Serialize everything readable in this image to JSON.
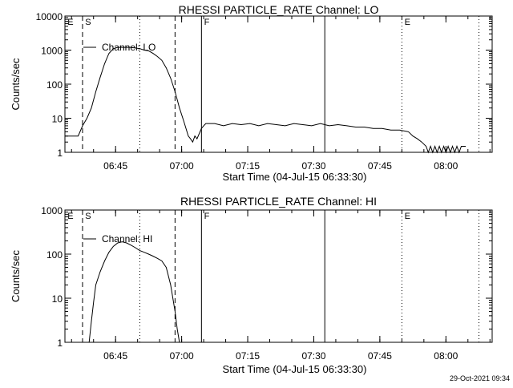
{
  "chart_data": [
    {
      "type": "line",
      "title": "RHESSI PARTICLE_RATE Channel: LO",
      "xlabel": "Start Time (04-Jul-15 06:33:30)",
      "ylabel": "Counts/sec",
      "yscale": "log",
      "ylim": [
        1,
        10000
      ],
      "ytick_labels": [
        "1",
        "10",
        "100",
        "1000",
        "10000"
      ],
      "xlim_minutes": [
        0,
        97
      ],
      "xtick_labels": [
        "06:45",
        "07:00",
        "07:15",
        "07:30",
        "07:45",
        "08:00"
      ],
      "legend": "Channel: LO",
      "series": [
        {
          "name": "Channel: LO",
          "points": [
            [
              0,
              3
            ],
            [
              2,
              3
            ],
            [
              3,
              3
            ],
            [
              4,
              6
            ],
            [
              5,
              10
            ],
            [
              6,
              20
            ],
            [
              7,
              60
            ],
            [
              8,
              160
            ],
            [
              9,
              400
            ],
            [
              10,
              800
            ],
            [
              11,
              1100
            ],
            [
              12,
              1200
            ],
            [
              13,
              1200
            ],
            [
              14,
              1200
            ],
            [
              15,
              1200
            ],
            [
              16,
              1150
            ],
            [
              17,
              1100
            ],
            [
              18,
              1000
            ],
            [
              19,
              950
            ],
            [
              20,
              800
            ],
            [
              21,
              650
            ],
            [
              22,
              500
            ],
            [
              23,
              300
            ],
            [
              24,
              150
            ],
            [
              25,
              60
            ],
            [
              26,
              20
            ],
            [
              27,
              8
            ],
            [
              28,
              3
            ],
            [
              28.5,
              2.5
            ],
            [
              29,
              2
            ],
            [
              29.5,
              3
            ],
            [
              30,
              2.5
            ],
            [
              31,
              5
            ],
            [
              31.5,
              6
            ],
            [
              32,
              7
            ],
            [
              34,
              7
            ],
            [
              36,
              6
            ],
            [
              38,
              7
            ],
            [
              40,
              6.5
            ],
            [
              42,
              7
            ],
            [
              44,
              6
            ],
            [
              46,
              7
            ],
            [
              48,
              6.5
            ],
            [
              50,
              6
            ],
            [
              52,
              7
            ],
            [
              54,
              6.5
            ],
            [
              56,
              6
            ],
            [
              58,
              7
            ],
            [
              60,
              6
            ],
            [
              62,
              6.5
            ],
            [
              64,
              6
            ],
            [
              66,
              5.5
            ],
            [
              68,
              5.5
            ],
            [
              70,
              5
            ],
            [
              72,
              5
            ],
            [
              74,
              4.5
            ],
            [
              76,
              4.5
            ],
            [
              78,
              4
            ],
            [
              79,
              3
            ],
            [
              80,
              2.5
            ],
            [
              81,
              2
            ],
            [
              82,
              1.5
            ],
            [
              82.5,
              1
            ],
            [
              83,
              1.5
            ],
            [
              83.5,
              1
            ],
            [
              84,
              1.5
            ],
            [
              84.5,
              1
            ],
            [
              85,
              1.5
            ],
            [
              85.5,
              1
            ],
            [
              86,
              1.5
            ],
            [
              86.5,
              1
            ],
            [
              87,
              1.5
            ],
            [
              87.5,
              1
            ],
            [
              88,
              1.5
            ],
            [
              88.5,
              1
            ],
            [
              89,
              1.5
            ],
            [
              89.5,
              1
            ],
            [
              90,
              1.5
            ],
            [
              91,
              1.5
            ]
          ]
        }
      ]
    },
    {
      "type": "line",
      "title": "RHESSI PARTICLE_RATE Channel: HI",
      "xlabel": "Start Time (04-Jul-15 06:33:30)",
      "ylabel": "Counts/sec",
      "yscale": "log",
      "ylim": [
        1,
        1000
      ],
      "ytick_labels": [
        "1",
        "10",
        "100",
        "1000"
      ],
      "xlim_minutes": [
        0,
        97
      ],
      "xtick_labels": [
        "06:45",
        "07:00",
        "07:15",
        "07:30",
        "07:45",
        "08:00"
      ],
      "legend": "Channel: HI",
      "series": [
        {
          "name": "Channel: HI",
          "points": [
            [
              5.5,
              1
            ],
            [
              6,
              3
            ],
            [
              6.5,
              8
            ],
            [
              7,
              20
            ],
            [
              8,
              40
            ],
            [
              9,
              70
            ],
            [
              10,
              110
            ],
            [
              11,
              150
            ],
            [
              12,
              180
            ],
            [
              13,
              190
            ],
            [
              14,
              180
            ],
            [
              15,
              160
            ],
            [
              16,
              140
            ],
            [
              17,
              120
            ],
            [
              18,
              110
            ],
            [
              19,
              100
            ],
            [
              20,
              90
            ],
            [
              21,
              80
            ],
            [
              22,
              70
            ],
            [
              23,
              50
            ],
            [
              24,
              20
            ],
            [
              25,
              5
            ],
            [
              25.5,
              2
            ],
            [
              26,
              1
            ]
          ]
        }
      ]
    }
  ],
  "markers": {
    "event_letters": [
      "E",
      "S",
      "F",
      "E"
    ],
    "dashed_minutes": [
      4,
      25
    ],
    "dotted_minutes": [
      17,
      76.5,
      94
    ],
    "solid_minutes": [
      31,
      59
    ],
    "s_minute": 4,
    "f_minute": 31,
    "e_minute": 76.5
  },
  "footer": {
    "timestamp": "29-Oct-2021 09:34"
  }
}
